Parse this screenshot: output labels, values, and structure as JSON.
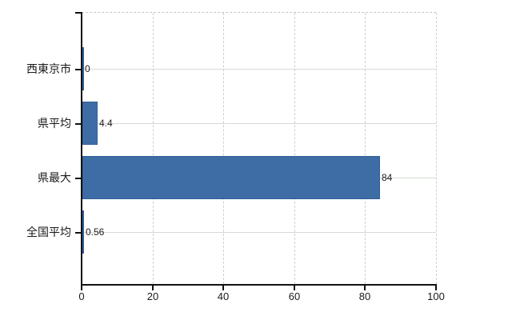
{
  "chart_data": {
    "type": "bar",
    "orientation": "horizontal",
    "title": "",
    "categories": [
      "西東京市",
      "県平均",
      "県最大",
      "全国平均"
    ],
    "values": [
      0,
      4.4,
      84,
      0.56
    ],
    "value_labels": [
      "0",
      "4.4",
      "84",
      "0.56"
    ],
    "xlabel": "",
    "ylabel": "",
    "xlim": [
      0,
      100
    ],
    "x_ticks": [
      0,
      20,
      40,
      60,
      80,
      100
    ],
    "x_tick_labels": [
      "0",
      "20",
      "40",
      "60",
      "80",
      "100"
    ],
    "grid": true,
    "grid_style": {
      "vertical": "dashed",
      "horizontal": "solid"
    },
    "legend": false,
    "colors": {
      "bar_fill": "#3e6da6",
      "bar_border": "#31609a",
      "axis": "#111111",
      "gridline_horizontal": "#d5ddd3",
      "gridline_vertical": "#cfcfcf",
      "plot_top_border": "#c9c9cf",
      "label_text": "#1a1a1a",
      "background": "#ffffff"
    }
  }
}
